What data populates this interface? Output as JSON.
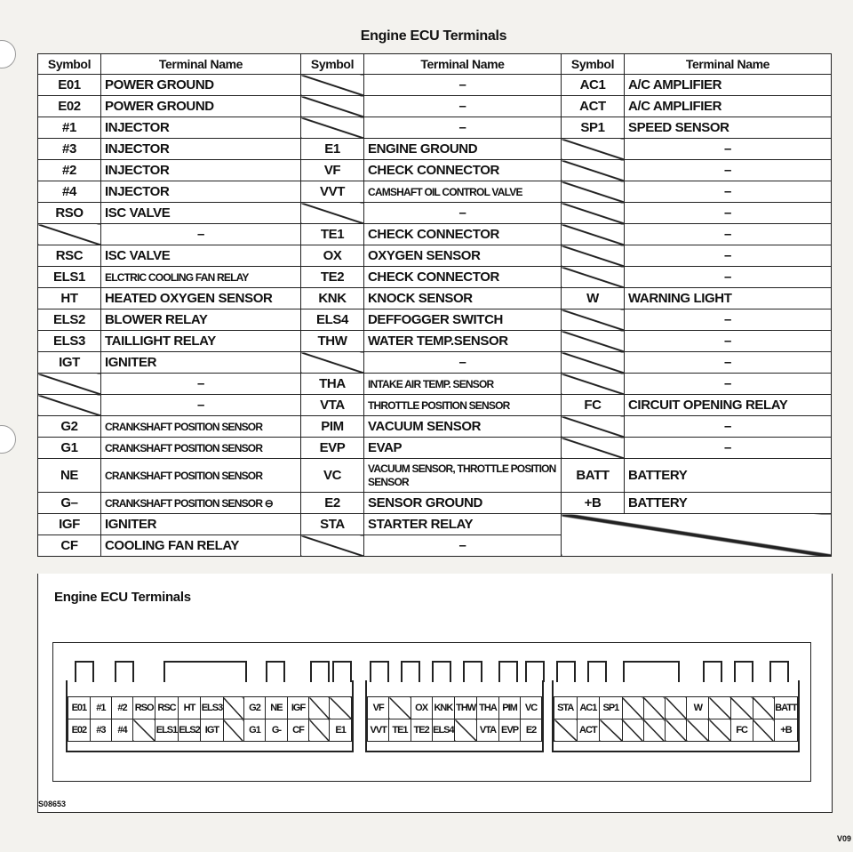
{
  "title": "Engine ECU Terminals",
  "headers": [
    "Symbol",
    "Terminal Name",
    "Symbol",
    "Terminal Name",
    "Symbol",
    "Terminal Name"
  ],
  "dash": "–",
  "rows": [
    [
      [
        "E01",
        "POWER GROUND"
      ],
      [
        "",
        ""
      ],
      [
        "AC1",
        "A/C AMPLIFIER"
      ]
    ],
    [
      [
        "E02",
        "POWER GROUND"
      ],
      [
        "",
        ""
      ],
      [
        "ACT",
        "A/C AMPLIFIER"
      ]
    ],
    [
      [
        "#1",
        "INJECTOR"
      ],
      [
        "",
        ""
      ],
      [
        "SP1",
        "SPEED SENSOR"
      ]
    ],
    [
      [
        "#3",
        "INJECTOR"
      ],
      [
        "E1",
        "ENGINE GROUND"
      ],
      [
        "",
        ""
      ]
    ],
    [
      [
        "#2",
        "INJECTOR"
      ],
      [
        "VF",
        "CHECK CONNECTOR"
      ],
      [
        "",
        ""
      ]
    ],
    [
      [
        "#4",
        "INJECTOR"
      ],
      [
        "VVT",
        "CAMSHAFT OIL CONTROL VALVE"
      ],
      [
        "",
        ""
      ]
    ],
    [
      [
        "RSO",
        "ISC VALVE"
      ],
      [
        "",
        ""
      ],
      [
        "",
        ""
      ]
    ],
    [
      [
        "",
        ""
      ],
      [
        "TE1",
        "CHECK CONNECTOR"
      ],
      [
        "",
        ""
      ]
    ],
    [
      [
        "RSC",
        "ISC VALVE"
      ],
      [
        "OX",
        "OXYGEN SENSOR"
      ],
      [
        "",
        ""
      ]
    ],
    [
      [
        "ELS1",
        "ELCTRIC COOLING FAN RELAY"
      ],
      [
        "TE2",
        "CHECK CONNECTOR"
      ],
      [
        "",
        ""
      ]
    ],
    [
      [
        "HT",
        "HEATED OXYGEN SENSOR"
      ],
      [
        "KNK",
        "KNOCK SENSOR"
      ],
      [
        "W",
        "WARNING LIGHT"
      ]
    ],
    [
      [
        "ELS2",
        "BLOWER RELAY"
      ],
      [
        "ELS4",
        "DEFFOGGER SWITCH"
      ],
      [
        "",
        ""
      ]
    ],
    [
      [
        "ELS3",
        "TAILLIGHT RELAY"
      ],
      [
        "THW",
        "WATER TEMP.SENSOR"
      ],
      [
        "",
        ""
      ]
    ],
    [
      [
        "IGT",
        "IGNITER"
      ],
      [
        "",
        ""
      ],
      [
        "",
        ""
      ]
    ],
    [
      [
        "",
        ""
      ],
      [
        "THA",
        "INTAKE AIR TEMP. SENSOR"
      ],
      [
        "",
        ""
      ]
    ],
    [
      [
        "",
        ""
      ],
      [
        "VTA",
        "THROTTLE POSITION SENSOR"
      ],
      [
        "FC",
        "CIRCUIT OPENING RELAY"
      ]
    ],
    [
      [
        "G2",
        "CRANKSHAFT POSITION SENSOR"
      ],
      [
        "PIM",
        "VACUUM SENSOR"
      ],
      [
        "",
        ""
      ]
    ],
    [
      [
        "G1",
        "CRANKSHAFT POSITION SENSOR"
      ],
      [
        "EVP",
        "EVAP"
      ],
      [
        "",
        ""
      ]
    ],
    [
      [
        "NE",
        "CRANKSHAFT POSITION SENSOR"
      ],
      [
        "VC",
        "VACUUM SENSOR, THROTTLE POSITION SENSOR"
      ],
      [
        "BATT",
        "BATTERY"
      ]
    ],
    [
      [
        "G–",
        "CRANKSHAFT POSITION SENSOR ⊖"
      ],
      [
        "E2",
        "SENSOR GROUND"
      ],
      [
        "+B",
        "BATTERY"
      ]
    ],
    [
      [
        "IGF",
        "IGNITER"
      ],
      [
        "STA",
        "STARTER RELAY"
      ],
      null
    ],
    [
      [
        "CF",
        "COOLING FAN RELAY"
      ],
      [
        "",
        ""
      ],
      null
    ]
  ],
  "diagram_title": "Engine ECU Terminals",
  "connectors": [
    {
      "top": [
        "E01",
        "#1",
        "#2",
        "RSO",
        "RSC",
        "HT",
        "ELS3",
        "",
        "G2",
        "NE",
        "IGF",
        "",
        ""
      ],
      "bottom": [
        "E02",
        "#3",
        "#4",
        "",
        "ELS1",
        "ELS2",
        "IGT",
        "",
        "G1",
        "G-",
        "CF",
        "",
        "E1"
      ]
    },
    {
      "top": [
        "VF",
        "",
        "OX",
        "KNK",
        "THW",
        "THA",
        "PIM",
        "VC"
      ],
      "bottom": [
        "VVT",
        "TE1",
        "TE2",
        "ELS4",
        "",
        "VTA",
        "EVP",
        "E2"
      ]
    },
    {
      "top": [
        "STA",
        "AC1",
        "SP1",
        "",
        "",
        "",
        "W",
        "",
        "",
        "",
        "BATT"
      ],
      "bottom": [
        "",
        "ACT",
        "",
        "",
        "",
        "",
        "",
        "",
        "FC",
        "",
        "+B"
      ]
    }
  ],
  "figure_code": "S08653",
  "page_code": "V09"
}
